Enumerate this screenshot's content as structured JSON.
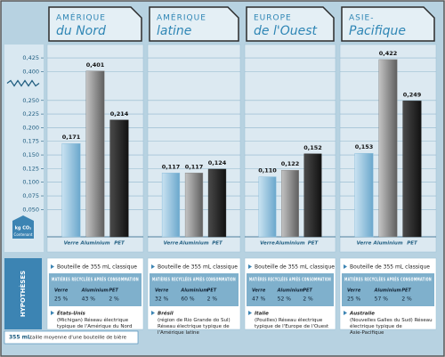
{
  "chart_data": [
    {
      "type": "bar",
      "title_top": "AMÉRIQUE",
      "title_bottom": "du Nord",
      "categories": [
        "Verre",
        "Aluminium",
        "PET"
      ],
      "values": [
        0.171,
        0.401,
        0.214
      ],
      "value_labels": [
        "0,171",
        "0,401",
        "0,214"
      ],
      "colors": [
        "#8fc0dd",
        "#8c8c8c",
        "#262626"
      ],
      "ylim": [
        0,
        0.43
      ],
      "axis_break": [
        0.27,
        0.39
      ],
      "yticks": [
        {
          "value": 0.05,
          "label": "0,050"
        },
        {
          "value": 0.075,
          "label": "0,075"
        },
        {
          "value": 0.1,
          "label": "0,100"
        },
        {
          "value": 0.125,
          "label": "0,125"
        },
        {
          "value": 0.15,
          "label": "0,150"
        },
        {
          "value": 0.175,
          "label": "0,175"
        },
        {
          "value": 0.2,
          "label": "0,200"
        },
        {
          "value": 0.225,
          "label": "0,225"
        },
        {
          "value": 0.25,
          "label": "0,250"
        },
        {
          "value": 0.4,
          "label": "0,400"
        },
        {
          "value": 0.425,
          "label": "0,425"
        }
      ],
      "y_unit": "kg CO₂",
      "y_unit_sub": "Contenant",
      "grid": true
    },
    {
      "type": "bar",
      "title_top": "AMÉRIQUE",
      "title_bottom": "latine",
      "categories": [
        "Verre",
        "Aluminium",
        "PET"
      ],
      "values": [
        0.117,
        0.117,
        0.124
      ],
      "value_labels": [
        "0,117",
        "0,117",
        "0,124"
      ],
      "colors": [
        "#8fc0dd",
        "#8c8c8c",
        "#262626"
      ]
    },
    {
      "type": "bar",
      "title_top": "EUROPE",
      "title_bottom": "de l'Ouest",
      "categories": [
        "Verre",
        "Aluminium",
        "PET"
      ],
      "values": [
        0.11,
        0.122,
        0.152
      ],
      "value_labels": [
        "0,110",
        "0,122",
        "0,152"
      ],
      "colors": [
        "#8fc0dd",
        "#8c8c8c",
        "#262626"
      ]
    },
    {
      "type": "bar",
      "title_top": "ASIE-",
      "title_bottom": "Pacifique",
      "categories": [
        "Verre",
        "Aluminium",
        "PET"
      ],
      "values": [
        0.153,
        0.422,
        0.249
      ],
      "value_labels": [
        "0,153",
        "0,422",
        "0,249"
      ],
      "colors": [
        "#8fc0dd",
        "#8c8c8c",
        "#262626"
      ]
    }
  ],
  "hypotheses": {
    "label": "HYPOTHÈSES",
    "panels": [
      {
        "bottle": "Bouteille de 355 mL classique",
        "recycled_title": "MATIÈRES RECYCLÉES APRÈS CONSOMMATION",
        "recycled": [
          {
            "material": "Verre",
            "share": "25 %"
          },
          {
            "material": "Aluminium",
            "share": "43 %"
          },
          {
            "material": "PET",
            "share": "2 %"
          }
        ],
        "place": "États-Unis",
        "place_detail": "(Michigan) Réseau électrique typique de l'Amérique du Nord"
      },
      {
        "bottle": "Bouteille de 355 mL classique",
        "recycled_title": "MATIÈRES RECYCLÉES APRÈS CONSOMMATION",
        "recycled": [
          {
            "material": "Verre",
            "share": "32 %"
          },
          {
            "material": "Aluminium",
            "share": "60 %"
          },
          {
            "material": "PET",
            "share": "2 %"
          }
        ],
        "place": "Brésil",
        "place_detail": "(région de Rio Grande do Sul) Réseau électrique typique de l'Amérique latine"
      },
      {
        "bottle": "Bouteille de 355 mL classique",
        "recycled_title": "MATIÈRES RECYCLÉES APRÈS CONSOMMATION",
        "recycled": [
          {
            "material": "Verre",
            "share": "47 %"
          },
          {
            "material": "Aluminium",
            "share": "52 %"
          },
          {
            "material": "PET",
            "share": "2 %"
          }
        ],
        "place": "Italie",
        "place_detail": "(Pouilles) Réseau électrique typique de l'Europe de l'Ouest"
      },
      {
        "bottle": "Bouteille de 355 mL classique",
        "recycled_title": "MATIÈRES RECYCLÉES APRÈS CONSOMMATION",
        "recycled": [
          {
            "material": "Verre",
            "share": "25 %"
          },
          {
            "material": "Aluminium",
            "share": "57 %"
          },
          {
            "material": "PET",
            "share": "2 %"
          }
        ],
        "place": "Australie",
        "place_detail": "(Nouvelles Galles du Sud) Réseau électrique typique de Asie-Pacifique"
      }
    ]
  },
  "footnote": {
    "bold": "355 mL",
    "text": "taille moyenne d'une bouteille de bière"
  }
}
